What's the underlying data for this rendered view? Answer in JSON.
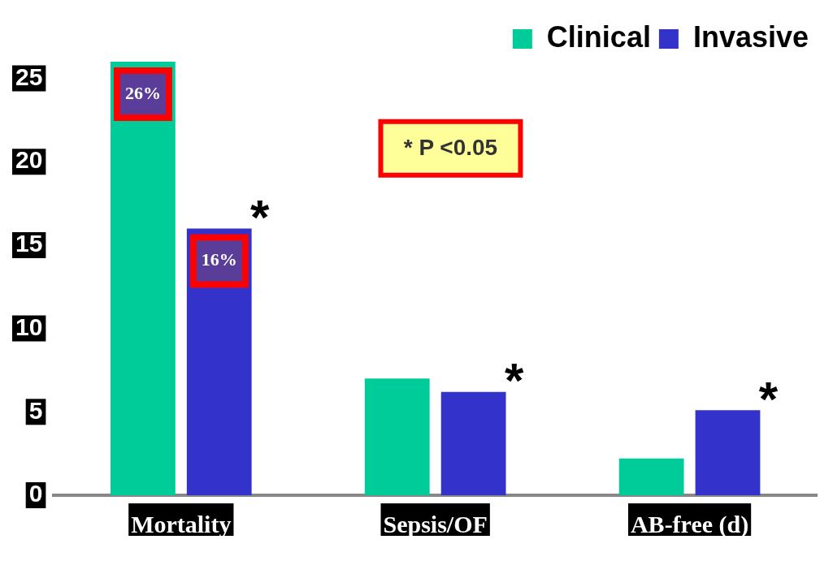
{
  "chart_data": {
    "type": "bar",
    "categories": [
      "Mortality",
      "Sepsis/OF",
      "AB-free (d)"
    ],
    "series": [
      {
        "name": "Clinical",
        "color": "#00cc99",
        "values": [
          26,
          7,
          2.2
        ],
        "value_labels": [
          "26%",
          null,
          null
        ]
      },
      {
        "name": "Invasive",
        "color": "#3333cc",
        "values": [
          16,
          6.2,
          5.1
        ],
        "value_labels": [
          "16%",
          null,
          null
        ]
      }
    ],
    "ylim": [
      0,
      26
    ],
    "yticks": [
      0,
      5,
      10,
      15,
      20,
      25
    ],
    "grid": false,
    "legend": "top right",
    "annotations": [
      "*",
      "*",
      "*",
      "* P <0.05"
    ]
  }
}
